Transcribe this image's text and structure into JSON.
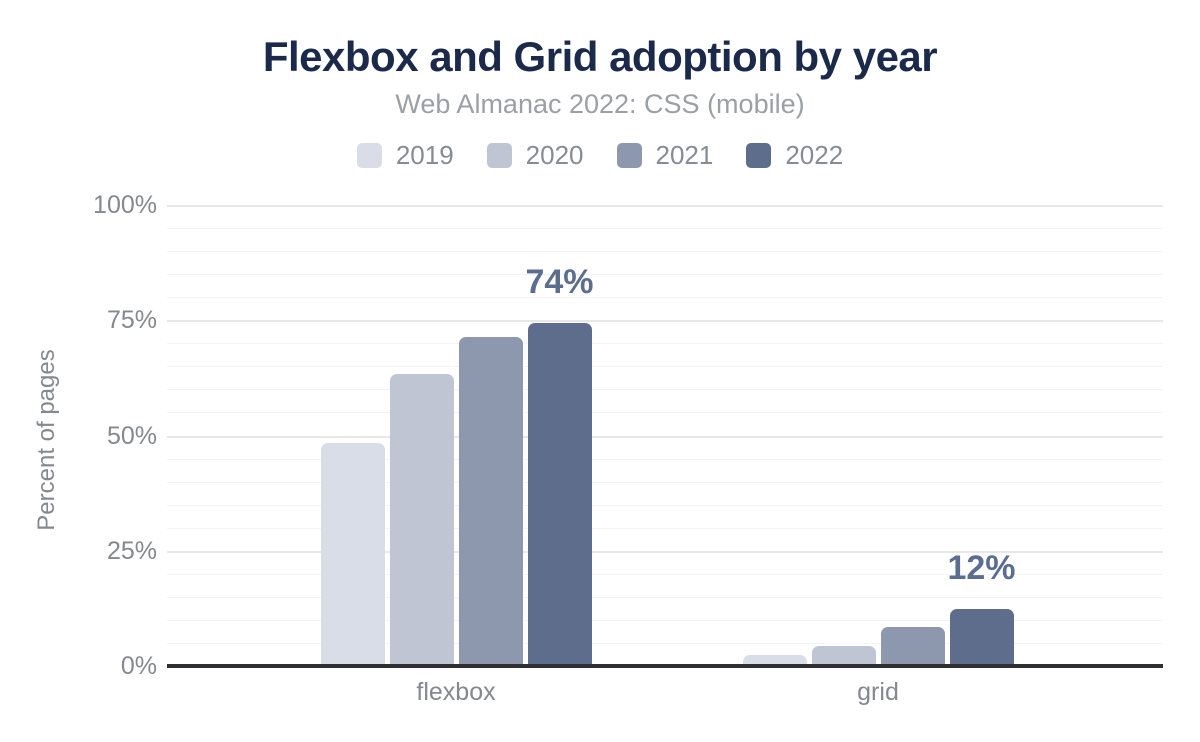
{
  "chart": {
    "title": "Flexbox and Grid adoption by year",
    "subtitle": "Web Almanac 2022: CSS (mobile)",
    "ylabel": "Percent of pages"
  },
  "colors": {
    "title": "#1b2a4a",
    "subtitle": "#9b9fa6",
    "axis_text": "#84898f",
    "data_label": "#5b6e8f",
    "axis_line": "#2f2f33",
    "grid_major": "#e8e8ea",
    "grid_minor": "#f4f4f6",
    "background": "#ffffff"
  },
  "chart_data": {
    "type": "bar",
    "title": "Flexbox and Grid adoption by year",
    "subtitle": "Web Almanac 2022: CSS (mobile)",
    "xlabel": "",
    "ylabel": "Percent of pages",
    "categories": [
      "flexbox",
      "grid"
    ],
    "series": [
      {
        "name": "2019",
        "color": "#d8dde8",
        "values": [
          48,
          2
        ]
      },
      {
        "name": "2020",
        "color": "#bfc5d3",
        "values": [
          63,
          4
        ]
      },
      {
        "name": "2021",
        "color": "#8d97ad",
        "values": [
          71,
          8
        ]
      },
      {
        "name": "2022",
        "color": "#5e6d8b",
        "values": [
          74,
          12
        ]
      }
    ],
    "ylim": [
      0,
      100
    ],
    "yticks": [
      {
        "value": 0,
        "label": "0%"
      },
      {
        "value": 25,
        "label": "25%"
      },
      {
        "value": 50,
        "label": "50%"
      },
      {
        "value": 75,
        "label": "75%"
      },
      {
        "value": 100,
        "label": "100%"
      }
    ],
    "grid": "horizontal; minor line every 5%, major line every 25%",
    "legend_position": "top",
    "annotations": [
      {
        "category": "flexbox",
        "series": "2022",
        "text": "74%"
      },
      {
        "category": "grid",
        "series": "2022",
        "text": "12%"
      }
    ]
  }
}
